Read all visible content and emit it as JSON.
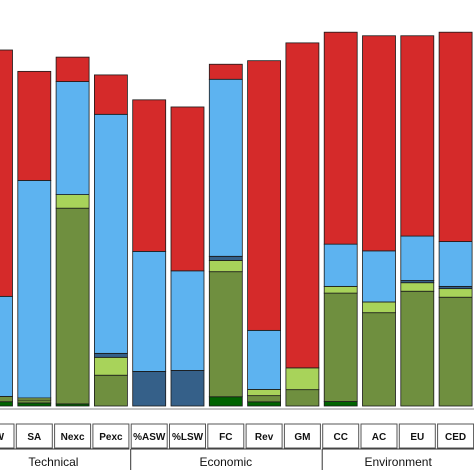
{
  "chart_data": {
    "type": "bar",
    "stacked": true,
    "normalized": true,
    "categories": [
      "SW",
      "SA",
      "Nexc",
      "Pexc",
      "%ASW",
      "%LSW",
      "FC",
      "Rev",
      "GM",
      "CC",
      "AC",
      "EU",
      "CED"
    ],
    "category_groups": [
      {
        "label": "Technical",
        "from": 0,
        "to": 3
      },
      {
        "label": "Economic",
        "from": 4,
        "to": 8
      },
      {
        "label": "Environment",
        "from": 9,
        "to": 12
      }
    ],
    "series": [
      {
        "key": "s1",
        "color": "#006400",
        "values": [
          0.012,
          0.009,
          0.006,
          0.0,
          0.0,
          0.0,
          0.027,
          0.012,
          0.0,
          0.012,
          0.0,
          0.0,
          0.0
        ]
      },
      {
        "key": "s2",
        "color": "#6f8f3f",
        "values": [
          0.015,
          0.009,
          0.561,
          0.093,
          0.0,
          0.0,
          0.366,
          0.018,
          0.045,
          0.29,
          0.252,
          0.31,
          0.291
        ]
      },
      {
        "key": "s3",
        "color": "#a8d35a",
        "values": [
          0.0,
          0.006,
          0.039,
          0.054,
          0.0,
          0.0,
          0.033,
          0.018,
          0.06,
          0.018,
          0.029,
          0.023,
          0.023
        ]
      },
      {
        "key": "s4",
        "color": "#356089",
        "values": [
          0.0,
          0.0,
          0.0,
          0.012,
          0.113,
          0.119,
          0.012,
          0.0,
          0.0,
          0.0,
          0.0,
          0.006,
          0.006
        ]
      },
      {
        "key": "s5",
        "color": "#5db3f0",
        "values": [
          0.281,
          0.65,
          0.324,
          0.722,
          0.392,
          0.333,
          0.518,
          0.171,
          0.0,
          0.113,
          0.138,
          0.12,
          0.12
        ]
      },
      {
        "key": "s6",
        "color": "#d52a2a",
        "values": [
          0.692,
          0.326,
          0.07,
          0.119,
          0.495,
          0.548,
          0.044,
          0.781,
          0.895,
          0.567,
          0.581,
          0.541,
          0.56
        ]
      }
    ],
    "segment_order": [
      "s1",
      "s2",
      "s3",
      "s4",
      "s5",
      "s6"
    ],
    "bar_totals": [
      1.0,
      0.94,
      0.98,
      0.93,
      0.86,
      0.84,
      0.96,
      0.97,
      1.02,
      1.05,
      1.04,
      1.04,
      1.05
    ],
    "legend": "none",
    "grid": false
  }
}
